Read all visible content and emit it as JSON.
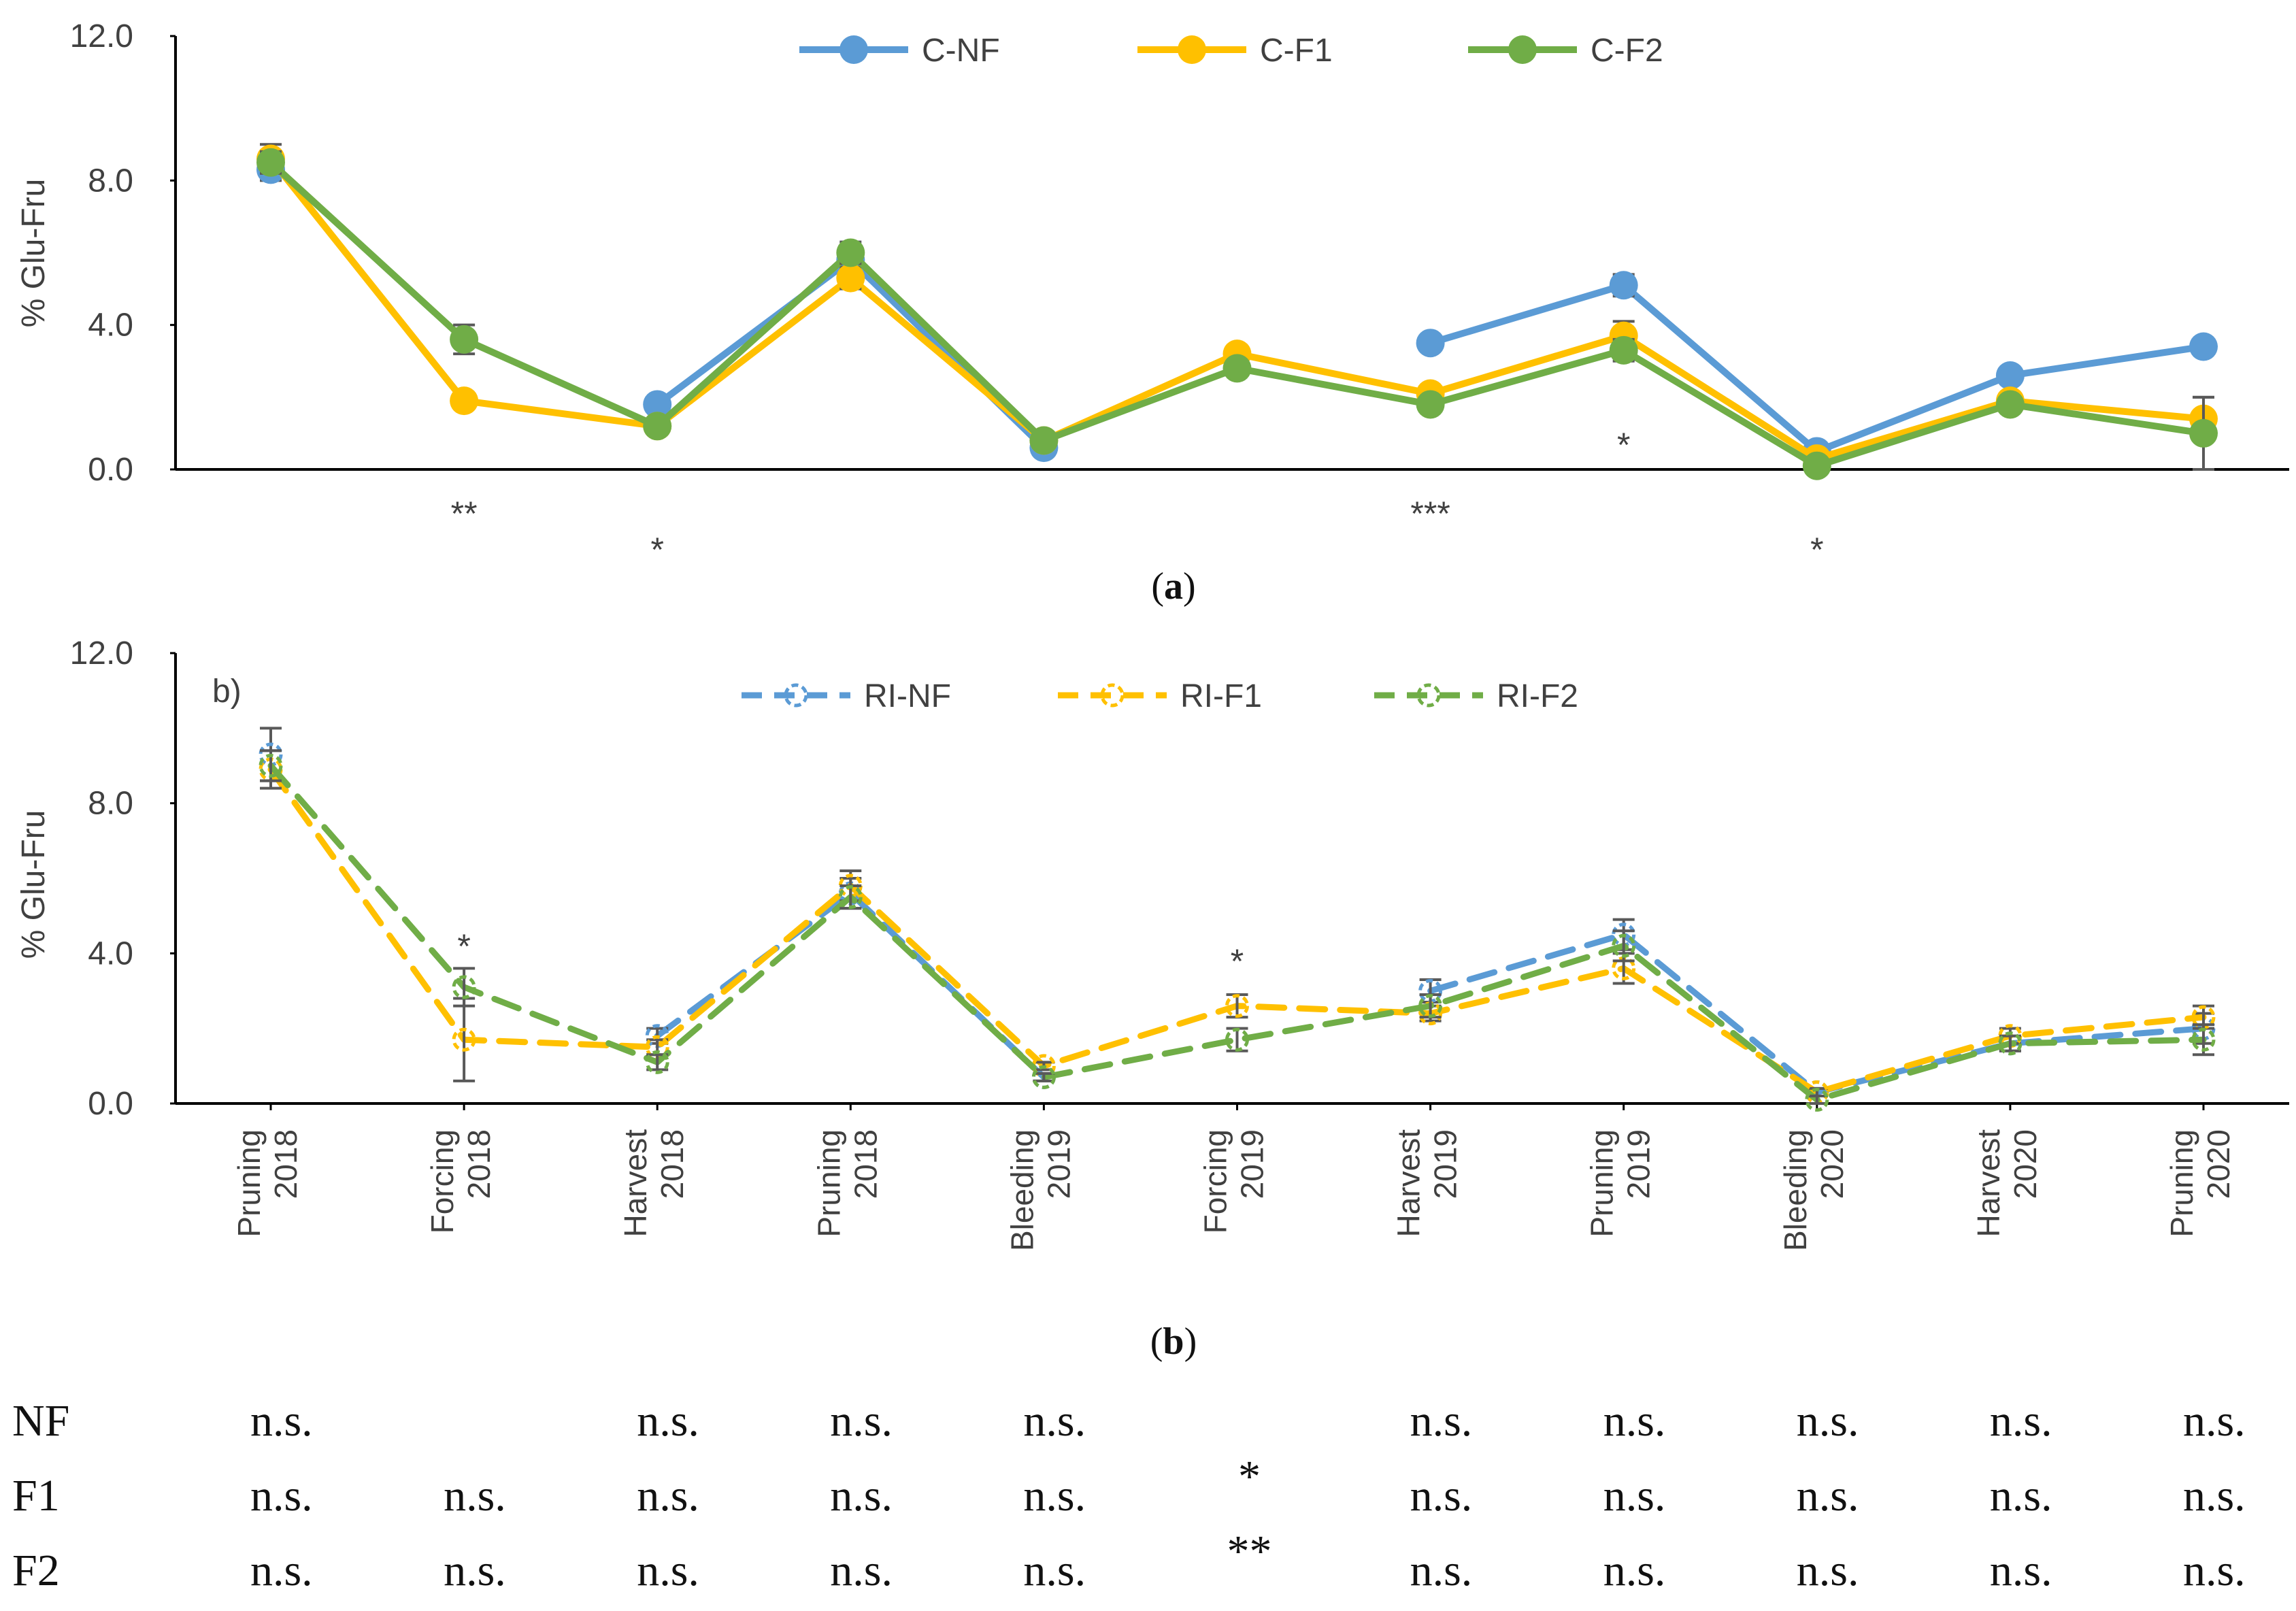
{
  "colors": {
    "NF": "#5B9BD5",
    "F1": "#FFC000",
    "F2": "#70AD47",
    "axis": "#000000",
    "errorbar": "#595959"
  },
  "captions": {
    "a": "(a)",
    "b": "(b)",
    "a_letter": "a",
    "b_letter": "b"
  },
  "panel_b_label": "b)",
  "chart_data": [
    {
      "id": "a",
      "type": "line",
      "ylabel": "% Glu-Fru",
      "ylim": [
        0,
        12
      ],
      "yticks": [
        "0.0",
        "4.0",
        "8.0",
        "12.0"
      ],
      "categories": [
        "Pruning 2018",
        "Forcing 2018",
        "Harvest 2018",
        "Pruning 2018",
        "Bleeding 2019",
        "Forcing 2019",
        "Harvest 2019",
        "Pruning 2019",
        "Bleeding 2020",
        "Harvest 2020",
        "Pruning 2020"
      ],
      "legend_position": "top",
      "series": [
        {
          "name": "C-NF",
          "key": "NF",
          "style": "solid",
          "values": [
            8.3,
            null,
            1.8,
            5.8,
            0.6,
            null,
            3.5,
            5.1,
            0.5,
            2.6,
            3.4
          ],
          "errors": [
            0.3,
            null,
            0.1,
            0.4,
            0.1,
            null,
            0.1,
            0.3,
            0.1,
            0.2,
            0.1
          ]
        },
        {
          "name": "C-F1",
          "key": "F1",
          "style": "solid",
          "values": [
            8.6,
            1.9,
            1.2,
            5.3,
            0.8,
            3.2,
            2.1,
            3.7,
            0.3,
            1.9,
            1.4
          ],
          "errors": [
            0.4,
            0.1,
            0.1,
            0.3,
            0.1,
            0.2,
            0.2,
            0.4,
            0.1,
            0.2,
            0.6
          ]
        },
        {
          "name": "C-F2",
          "key": "F2",
          "style": "solid",
          "values": [
            8.5,
            3.6,
            1.2,
            6.0,
            0.8,
            2.8,
            1.8,
            3.3,
            0.1,
            1.8,
            1.0
          ],
          "errors": [
            0.3,
            0.4,
            0.1,
            0.3,
            0.1,
            0.2,
            0.1,
            0.3,
            0.1,
            0.1,
            1.0
          ]
        }
      ],
      "annotations": [
        {
          "category_index": 1,
          "text": "**",
          "y": -0.9
        },
        {
          "category_index": 2,
          "text": "*",
          "y": -1.9
        },
        {
          "category_index": 6,
          "text": "***",
          "y": -0.9
        },
        {
          "category_index": 7,
          "text": "*",
          "y": 1.0
        },
        {
          "category_index": 8,
          "text": "*",
          "y": -1.9
        }
      ]
    },
    {
      "id": "b",
      "type": "line",
      "ylabel": "% Glu-Fru",
      "ylim": [
        0,
        12
      ],
      "yticks": [
        "0.0",
        "4.0",
        "8.0",
        "12.0"
      ],
      "categories": [
        "Pruning 2018",
        "Forcing 2018",
        "Harvest 2018",
        "Pruning 2018",
        "Bleeding 2019",
        "Forcing 2019",
        "Harvest 2019",
        "Pruning 2019",
        "Bleeding 2020",
        "Harvest 2020",
        "Pruning 2020"
      ],
      "category_lines": [
        [
          "Pruning",
          "2018"
        ],
        [
          "Forcing",
          "2018"
        ],
        [
          "Harvest",
          "2018"
        ],
        [
          "Pruning",
          "2018"
        ],
        [
          "Bleeding",
          "2019"
        ],
        [
          "Forcing",
          "2019"
        ],
        [
          "Harvest",
          "2019"
        ],
        [
          "Pruning",
          "2019"
        ],
        [
          "Bleeding",
          "2020"
        ],
        [
          "Harvest",
          "2020"
        ],
        [
          "Pruning",
          "2020"
        ]
      ],
      "legend_position": "top",
      "series": [
        {
          "name": "RI-NF",
          "key": "NF",
          "style": "dashed",
          "values": [
            9.3,
            null,
            1.8,
            5.6,
            0.7,
            null,
            3.0,
            4.5,
            0.3,
            1.6,
            2.0
          ],
          "errors": [
            0.7,
            null,
            0.2,
            0.4,
            0.1,
            null,
            0.3,
            0.4,
            0.1,
            0.2,
            0.4
          ]
        },
        {
          "name": "RI-F1",
          "key": "F1",
          "style": "dashed",
          "values": [
            8.9,
            1.7,
            1.5,
            5.8,
            1.0,
            2.6,
            2.4,
            3.6,
            0.3,
            1.8,
            2.3
          ],
          "errors": [
            0.5,
            1.1,
            0.2,
            0.4,
            0.1,
            0.3,
            0.2,
            0.4,
            0.1,
            0.2,
            0.3
          ]
        },
        {
          "name": "RI-F2",
          "key": "F2",
          "style": "dashed",
          "values": [
            9.0,
            3.1,
            1.1,
            5.5,
            0.7,
            1.7,
            2.6,
            4.2,
            0.1,
            1.6,
            1.7
          ],
          "errors": [
            0.4,
            0.5,
            0.2,
            0.3,
            0.1,
            0.3,
            0.3,
            0.4,
            0.1,
            0.2,
            0.4
          ]
        }
      ],
      "annotations": [
        {
          "category_index": 1,
          "text": "*",
          "y": 4.5
        },
        {
          "category_index": 5,
          "text": "*",
          "y": 4.1
        }
      ]
    }
  ],
  "stats_table": {
    "rows": [
      {
        "label": "NF",
        "cells": [
          "n.s.",
          "",
          "n.s.",
          "n.s.",
          "n.s.",
          "",
          "n.s.",
          "n.s.",
          "n.s.",
          "n.s.",
          "n.s."
        ]
      },
      {
        "label": "F1",
        "cells": [
          "n.s.",
          "n.s.",
          "n.s.",
          "n.s.",
          "n.s.",
          "*",
          "n.s.",
          "n.s.",
          "n.s.",
          "n.s.",
          "n.s."
        ]
      },
      {
        "label": "F2",
        "cells": [
          "n.s.",
          "n.s.",
          "n.s.",
          "n.s.",
          "n.s.",
          "**",
          "n.s.",
          "n.s.",
          "n.s.",
          "n.s.",
          "n.s."
        ]
      }
    ]
  }
}
